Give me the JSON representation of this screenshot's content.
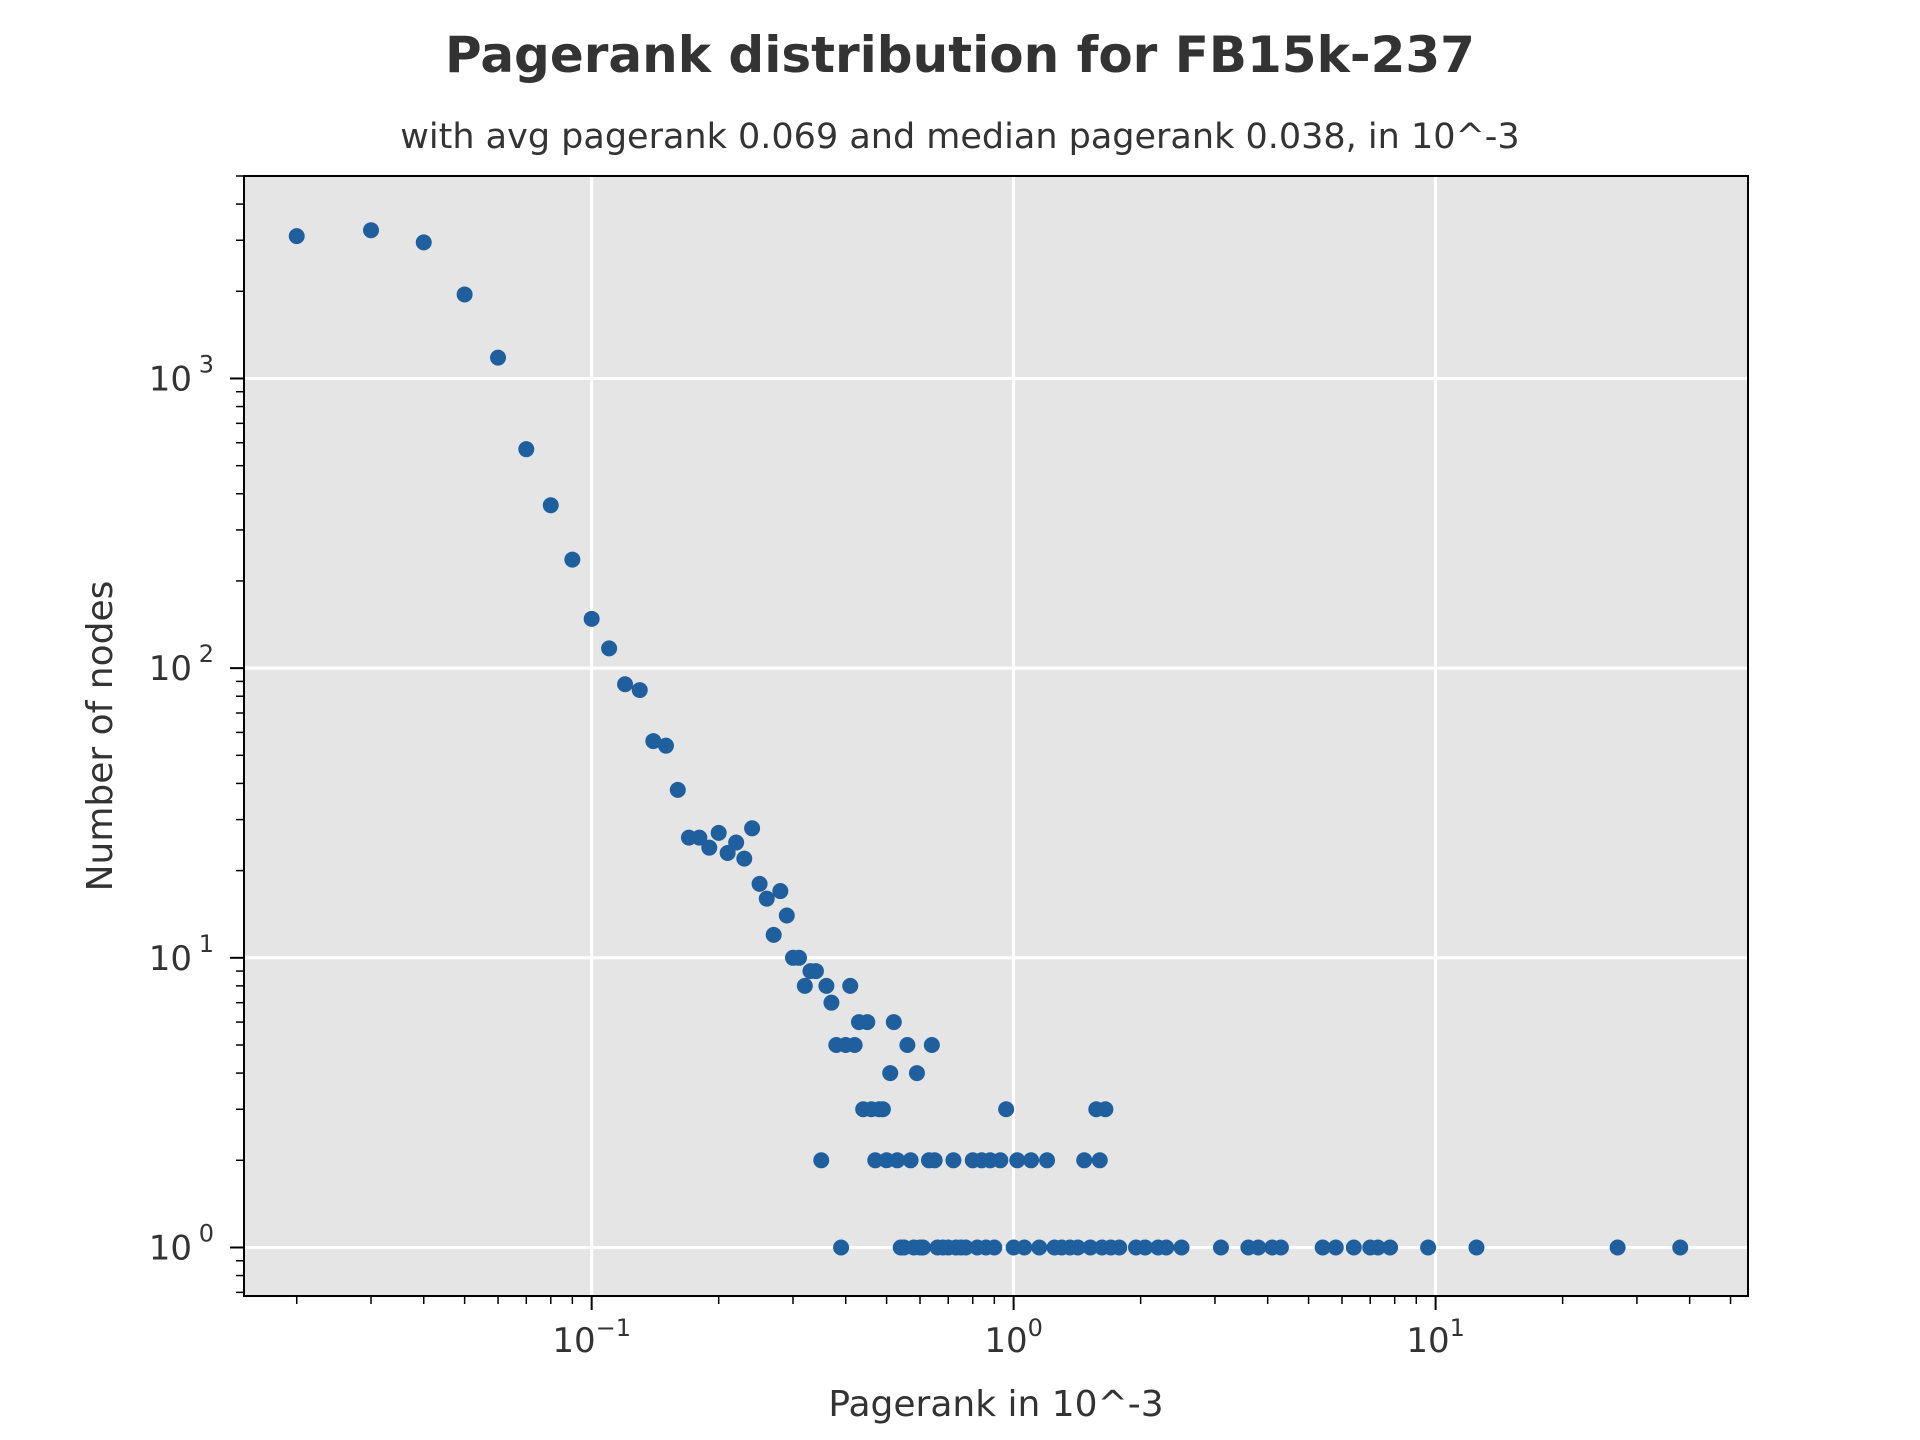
{
  "chart_data": {
    "type": "scatter",
    "title": "Pagerank distribution for FB15k-237",
    "subtitle": "with avg pagerank 0.069 and median pagerank 0.038, in 10^-3",
    "xlabel": "Pagerank in 10^-3",
    "ylabel": "Number of nodes",
    "xscale": "log",
    "yscale": "log",
    "xlim": [
      0.015,
      55
    ],
    "ylim": [
      0.68,
      5000
    ],
    "grid": true,
    "x_ticks": [
      {
        "value": 0.1,
        "base": "10",
        "exp": "−1"
      },
      {
        "value": 1,
        "base": "10",
        "exp": "0"
      },
      {
        "value": 10,
        "base": "10",
        "exp": "1"
      }
    ],
    "y_ticks": [
      {
        "value": 1,
        "base": "10",
        "exp": "0"
      },
      {
        "value": 10,
        "base": "10",
        "exp": "1"
      },
      {
        "value": 100,
        "base": "10",
        "exp": "2"
      },
      {
        "value": 1000,
        "base": "10",
        "exp": "3"
      }
    ],
    "colors": {
      "marker": "#1f5f9e",
      "plot_background": "#e5e5e5",
      "grid": "#ffffff",
      "text": "#333333",
      "frame": "#000000"
    },
    "points": [
      {
        "x": 0.02,
        "y": 3100
      },
      {
        "x": 0.03,
        "y": 3250
      },
      {
        "x": 0.04,
        "y": 2950
      },
      {
        "x": 0.05,
        "y": 1950
      },
      {
        "x": 0.06,
        "y": 1180
      },
      {
        "x": 0.07,
        "y": 570
      },
      {
        "x": 0.08,
        "y": 365
      },
      {
        "x": 0.09,
        "y": 237
      },
      {
        "x": 0.1,
        "y": 148
      },
      {
        "x": 0.11,
        "y": 117
      },
      {
        "x": 0.12,
        "y": 88
      },
      {
        "x": 0.13,
        "y": 84
      },
      {
        "x": 0.14,
        "y": 56
      },
      {
        "x": 0.15,
        "y": 54
      },
      {
        "x": 0.16,
        "y": 38
      },
      {
        "x": 0.17,
        "y": 26
      },
      {
        "x": 0.18,
        "y": 26
      },
      {
        "x": 0.19,
        "y": 24
      },
      {
        "x": 0.2,
        "y": 27
      },
      {
        "x": 0.21,
        "y": 23
      },
      {
        "x": 0.22,
        "y": 25
      },
      {
        "x": 0.23,
        "y": 22
      },
      {
        "x": 0.24,
        "y": 28
      },
      {
        "x": 0.25,
        "y": 18
      },
      {
        "x": 0.26,
        "y": 16
      },
      {
        "x": 0.27,
        "y": 12
      },
      {
        "x": 0.28,
        "y": 17
      },
      {
        "x": 0.29,
        "y": 14
      },
      {
        "x": 0.3,
        "y": 10
      },
      {
        "x": 0.31,
        "y": 10
      },
      {
        "x": 0.32,
        "y": 8
      },
      {
        "x": 0.33,
        "y": 9
      },
      {
        "x": 0.34,
        "y": 9
      },
      {
        "x": 0.35,
        "y": 2
      },
      {
        "x": 0.36,
        "y": 8
      },
      {
        "x": 0.37,
        "y": 7
      },
      {
        "x": 0.38,
        "y": 5
      },
      {
        "x": 0.39,
        "y": 1
      },
      {
        "x": 0.4,
        "y": 5
      },
      {
        "x": 0.41,
        "y": 8
      },
      {
        "x": 0.42,
        "y": 5
      },
      {
        "x": 0.43,
        "y": 6
      },
      {
        "x": 0.44,
        "y": 3
      },
      {
        "x": 0.45,
        "y": 6
      },
      {
        "x": 0.46,
        "y": 3
      },
      {
        "x": 0.47,
        "y": 2
      },
      {
        "x": 0.48,
        "y": 3
      },
      {
        "x": 0.49,
        "y": 3
      },
      {
        "x": 0.5,
        "y": 2
      },
      {
        "x": 0.51,
        "y": 4
      },
      {
        "x": 0.52,
        "y": 6
      },
      {
        "x": 0.53,
        "y": 2
      },
      {
        "x": 0.54,
        "y": 1
      },
      {
        "x": 0.55,
        "y": 1
      },
      {
        "x": 0.56,
        "y": 5
      },
      {
        "x": 0.57,
        "y": 2
      },
      {
        "x": 0.58,
        "y": 1
      },
      {
        "x": 0.59,
        "y": 4
      },
      {
        "x": 0.6,
        "y": 1
      },
      {
        "x": 0.61,
        "y": 1
      },
      {
        "x": 0.63,
        "y": 2
      },
      {
        "x": 0.64,
        "y": 5
      },
      {
        "x": 0.65,
        "y": 2
      },
      {
        "x": 0.66,
        "y": 1
      },
      {
        "x": 0.68,
        "y": 1
      },
      {
        "x": 0.7,
        "y": 1
      },
      {
        "x": 0.72,
        "y": 2
      },
      {
        "x": 0.73,
        "y": 1
      },
      {
        "x": 0.75,
        "y": 1
      },
      {
        "x": 0.77,
        "y": 1
      },
      {
        "x": 0.8,
        "y": 2
      },
      {
        "x": 0.82,
        "y": 1
      },
      {
        "x": 0.84,
        "y": 2
      },
      {
        "x": 0.86,
        "y": 1
      },
      {
        "x": 0.88,
        "y": 2
      },
      {
        "x": 0.9,
        "y": 1
      },
      {
        "x": 0.93,
        "y": 2
      },
      {
        "x": 0.96,
        "y": 3
      },
      {
        "x": 1.0,
        "y": 1
      },
      {
        "x": 1.02,
        "y": 2
      },
      {
        "x": 1.06,
        "y": 1
      },
      {
        "x": 1.1,
        "y": 2
      },
      {
        "x": 1.15,
        "y": 1
      },
      {
        "x": 1.2,
        "y": 2
      },
      {
        "x": 1.25,
        "y": 1
      },
      {
        "x": 1.3,
        "y": 1
      },
      {
        "x": 1.36,
        "y": 1
      },
      {
        "x": 1.42,
        "y": 1
      },
      {
        "x": 1.47,
        "y": 2
      },
      {
        "x": 1.52,
        "y": 1
      },
      {
        "x": 1.57,
        "y": 3
      },
      {
        "x": 1.6,
        "y": 2
      },
      {
        "x": 1.62,
        "y": 1
      },
      {
        "x": 1.65,
        "y": 3
      },
      {
        "x": 1.7,
        "y": 1
      },
      {
        "x": 1.78,
        "y": 1
      },
      {
        "x": 1.95,
        "y": 1
      },
      {
        "x": 2.05,
        "y": 1
      },
      {
        "x": 2.2,
        "y": 1
      },
      {
        "x": 2.3,
        "y": 1
      },
      {
        "x": 2.5,
        "y": 1
      },
      {
        "x": 3.1,
        "y": 1
      },
      {
        "x": 3.6,
        "y": 1
      },
      {
        "x": 3.8,
        "y": 1
      },
      {
        "x": 4.1,
        "y": 1
      },
      {
        "x": 4.3,
        "y": 1
      },
      {
        "x": 5.4,
        "y": 1
      },
      {
        "x": 5.8,
        "y": 1
      },
      {
        "x": 6.4,
        "y": 1
      },
      {
        "x": 7.0,
        "y": 1
      },
      {
        "x": 7.3,
        "y": 1
      },
      {
        "x": 7.8,
        "y": 1
      },
      {
        "x": 9.6,
        "y": 1
      },
      {
        "x": 12.5,
        "y": 1
      },
      {
        "x": 27.0,
        "y": 1
      },
      {
        "x": 38.0,
        "y": 1
      }
    ]
  }
}
